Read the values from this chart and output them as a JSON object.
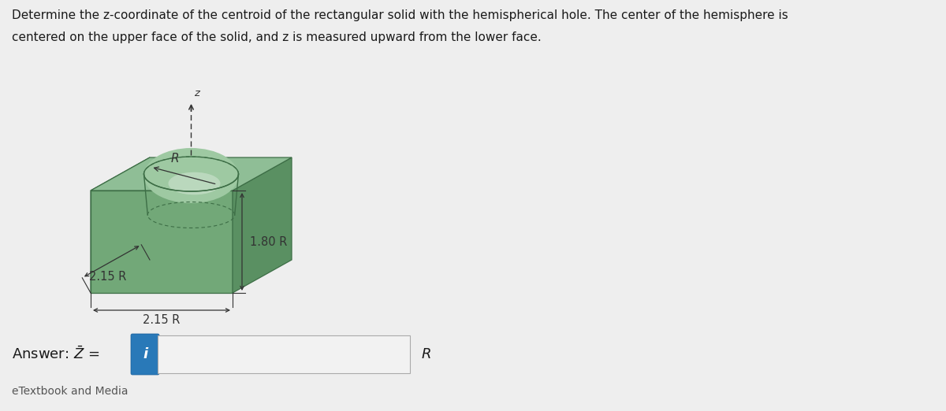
{
  "title_line1": "Determine the z-coordinate of the centroid of the rectangular solid with the hemispherical hole. The center of the hemisphere is",
  "title_line2": "centered on the upper face of the solid, and z is measured upward from the lower face.",
  "title_fontsize": 11.0,
  "title_color": "#1a1a1a",
  "bg_color": "#eeeeee",
  "box_face_top": "#8fbe96",
  "box_face_front": "#72a878",
  "box_face_right": "#5a9062",
  "box_face_left": "#7ab380",
  "hem_rim_fill": "#9ec9a2",
  "hem_inner_light": "#c2ddc5",
  "hem_edge_color": "#3d6e46",
  "answer_fontsize": 13,
  "dim_fontsize": 10.5,
  "R_label": "R",
  "dim_1_80": "1.80 R",
  "dim_2_15_front": "2.15 R",
  "dim_2_15_left": "2.15 R",
  "dim_R_arrow": "R",
  "dim_z": "z"
}
